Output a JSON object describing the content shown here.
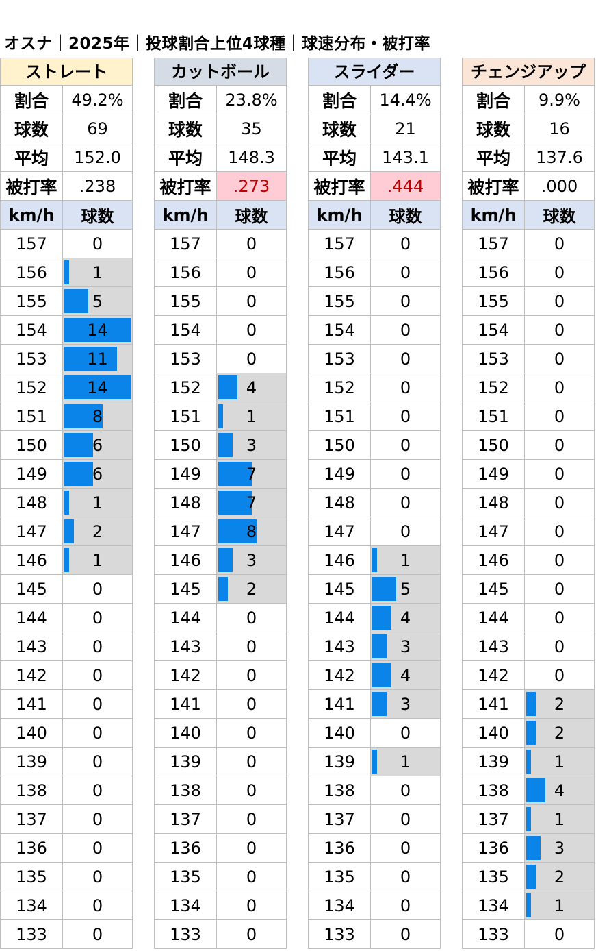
{
  "title": "オスナ｜2025年｜投球割合上位4球種｜球速分布・被打率",
  "labels": {
    "ratio": "割合",
    "count": "球数",
    "avg": "平均",
    "baa": "被打率",
    "kmh": "km/h",
    "balls": "球数"
  },
  "colors": {
    "bar": "#0a84e8",
    "bar_bg": "#d9d9d9",
    "subheader": "#dae3f3",
    "highlight_bg": "#ffccd5",
    "highlight_text": "#c00000"
  },
  "bar_max": 14,
  "speeds": [
    "157",
    "156",
    "155",
    "154",
    "153",
    "152",
    "151",
    "150",
    "149",
    "148",
    "147",
    "146",
    "145",
    "144",
    "143",
    "142",
    "141",
    "140",
    "139",
    "138",
    "137",
    "136",
    "135",
    "134",
    "133"
  ],
  "pitches": [
    {
      "name": "ストレート",
      "header_color": "#fff2cc",
      "ratio": "49.2%",
      "count": "69",
      "avg": "152.0",
      "baa": ".238",
      "baa_highlight": false,
      "counts": [
        0,
        1,
        5,
        14,
        11,
        14,
        8,
        6,
        6,
        1,
        2,
        1,
        0,
        0,
        0,
        0,
        0,
        0,
        0,
        0,
        0,
        0,
        0,
        0,
        0
      ],
      "shaded": [
        false,
        true,
        true,
        true,
        true,
        true,
        true,
        true,
        true,
        true,
        true,
        true,
        false,
        false,
        false,
        false,
        false,
        false,
        false,
        false,
        false,
        false,
        false,
        false,
        false
      ]
    },
    {
      "name": "カットボール",
      "header_color": "#d6dce5",
      "ratio": "23.8%",
      "count": "35",
      "avg": "148.3",
      "baa": ".273",
      "baa_highlight": true,
      "counts": [
        0,
        0,
        0,
        0,
        0,
        4,
        1,
        3,
        7,
        7,
        8,
        3,
        2,
        0,
        0,
        0,
        0,
        0,
        0,
        0,
        0,
        0,
        0,
        0,
        0
      ],
      "shaded": [
        false,
        false,
        false,
        false,
        false,
        true,
        true,
        true,
        true,
        true,
        true,
        true,
        true,
        false,
        false,
        false,
        false,
        false,
        false,
        false,
        false,
        false,
        false,
        false,
        false
      ]
    },
    {
      "name": "スライダー",
      "header_color": "#dae3f3",
      "ratio": "14.4%",
      "count": "21",
      "avg": "143.1",
      "baa": ".444",
      "baa_highlight": true,
      "counts": [
        0,
        0,
        0,
        0,
        0,
        0,
        0,
        0,
        0,
        0,
        0,
        1,
        5,
        4,
        3,
        4,
        3,
        0,
        1,
        0,
        0,
        0,
        0,
        0,
        0
      ],
      "shaded": [
        false,
        false,
        false,
        false,
        false,
        false,
        false,
        false,
        false,
        false,
        false,
        true,
        true,
        true,
        true,
        true,
        true,
        false,
        true,
        false,
        false,
        false,
        false,
        false,
        false
      ]
    },
    {
      "name": "チェンジアップ",
      "header_color": "#fbe5d6",
      "ratio": "9.9%",
      "count": "16",
      "avg": "137.6",
      "baa": ".000",
      "baa_highlight": false,
      "counts": [
        0,
        0,
        0,
        0,
        0,
        0,
        0,
        0,
        0,
        0,
        0,
        0,
        0,
        0,
        0,
        0,
        2,
        2,
        1,
        4,
        1,
        3,
        2,
        1,
        0
      ],
      "shaded": [
        false,
        false,
        false,
        false,
        false,
        false,
        false,
        false,
        false,
        false,
        false,
        false,
        false,
        false,
        false,
        false,
        true,
        true,
        true,
        true,
        true,
        true,
        true,
        true,
        false
      ]
    }
  ]
}
